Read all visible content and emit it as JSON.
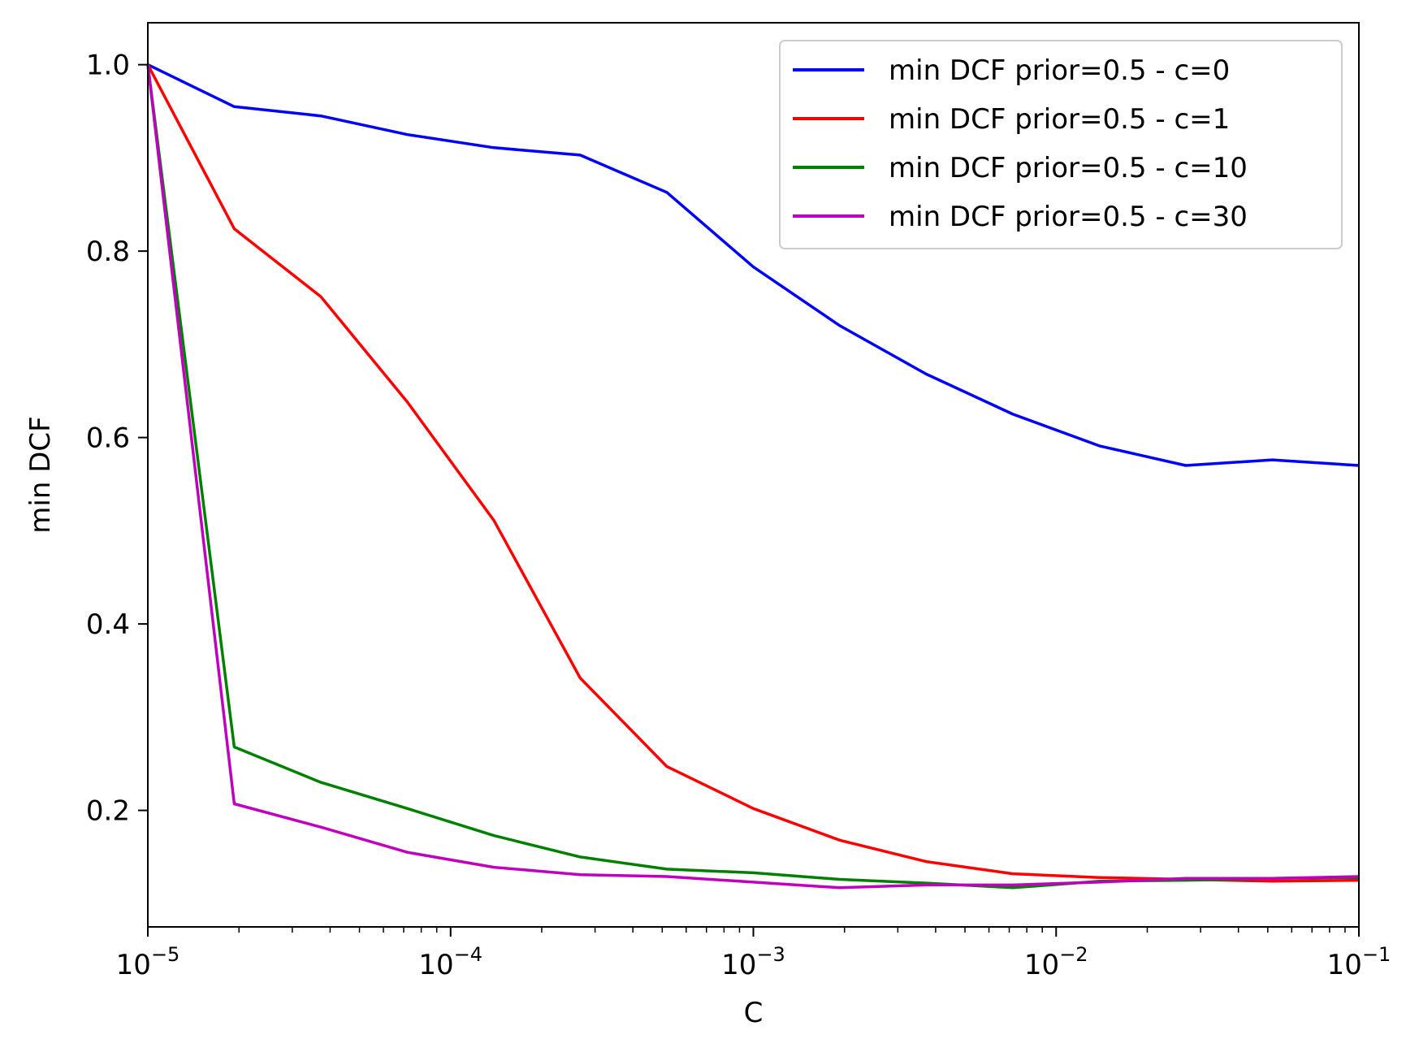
{
  "chart_data": {
    "type": "line",
    "xlabel": "C",
    "ylabel": "min DCF",
    "xscale": "log",
    "xlim": [
      1e-05,
      0.1
    ],
    "ylim": [
      0.075,
      1.045
    ],
    "grid": false,
    "legend_position": "top-right",
    "x_tick_labels": [
      {
        "value": 1e-05,
        "base": "10",
        "exp": "−5"
      },
      {
        "value": 0.0001,
        "base": "10",
        "exp": "−4"
      },
      {
        "value": 0.001,
        "base": "10",
        "exp": "−3"
      },
      {
        "value": 0.01,
        "base": "10",
        "exp": "−2"
      },
      {
        "value": 0.1,
        "base": "10",
        "exp": "−1"
      }
    ],
    "y_ticks": [
      0.2,
      0.4,
      0.6,
      0.8,
      1.0
    ],
    "y_tick_labels": [
      "0.2",
      "0.4",
      "0.6",
      "0.8",
      "1.0"
    ],
    "x": [
      1e-05,
      1.93e-05,
      3.73e-05,
      7.2e-05,
      0.000139,
      0.000268,
      0.000518,
      0.001,
      0.00193,
      0.00373,
      0.0072,
      0.0139,
      0.0268,
      0.0518,
      0.1
    ],
    "series": [
      {
        "name": "min DCF prior=0.5 - c=0",
        "color": "#0000ff",
        "values": [
          1.0,
          0.955,
          0.945,
          0.925,
          0.911,
          0.903,
          0.863,
          0.783,
          0.72,
          0.668,
          0.625,
          0.591,
          0.57,
          0.576,
          0.57
        ]
      },
      {
        "name": "min DCF prior=0.5 - c=1",
        "color": "#ff0000",
        "values": [
          1.0,
          0.824,
          0.751,
          0.638,
          0.511,
          0.342,
          0.247,
          0.202,
          0.168,
          0.145,
          0.132,
          0.128,
          0.126,
          0.124,
          0.125
        ]
      },
      {
        "name": "min DCF prior=0.5 - c=10",
        "color": "#008000",
        "values": [
          1.0,
          0.268,
          0.23,
          0.202,
          0.173,
          0.15,
          0.137,
          0.133,
          0.126,
          0.122,
          0.117,
          0.124,
          0.125,
          0.127,
          0.128
        ]
      },
      {
        "name": "min DCF prior=0.5 - c=30",
        "color": "#bf00bf",
        "values": [
          1.0,
          0.207,
          0.182,
          0.155,
          0.139,
          0.131,
          0.129,
          0.123,
          0.117,
          0.12,
          0.12,
          0.123,
          0.127,
          0.127,
          0.129
        ]
      }
    ]
  }
}
